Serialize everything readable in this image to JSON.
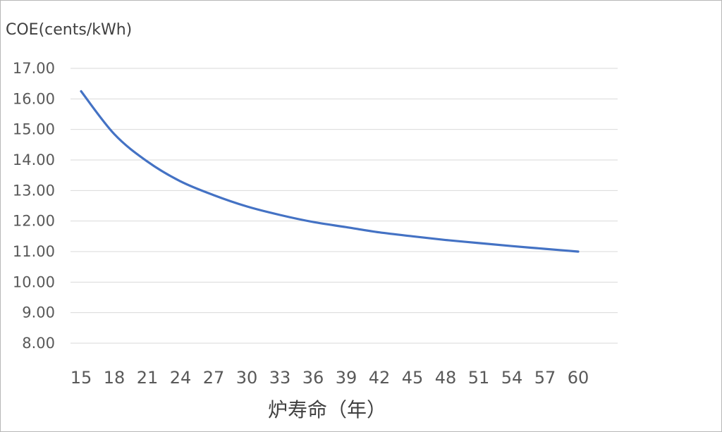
{
  "chart_data": {
    "type": "line",
    "title": "",
    "ylabel": "COE(cents/kWh)",
    "xlabel": "炉寿命（年）",
    "ylim": [
      8.0,
      17.0
    ],
    "y_ticks": [
      "8.00",
      "9.00",
      "10.00",
      "11.00",
      "12.00",
      "13.00",
      "14.00",
      "15.00",
      "16.00",
      "17.00"
    ],
    "x_ticks": [
      "15",
      "18",
      "21",
      "24",
      "27",
      "30",
      "33",
      "36",
      "39",
      "42",
      "45",
      "48",
      "51",
      "54",
      "57",
      "60"
    ],
    "grid": true,
    "legend": "none",
    "line_color": "#4472c4",
    "x": [
      15,
      18,
      21,
      24,
      27,
      30,
      33,
      36,
      39,
      42,
      45,
      48,
      51,
      54,
      57,
      60
    ],
    "series": [
      {
        "values": [
          16.25,
          14.85,
          13.95,
          13.3,
          12.85,
          12.48,
          12.2,
          11.97,
          11.8,
          11.63,
          11.5,
          11.38,
          11.28,
          11.18,
          11.09,
          11.0
        ]
      }
    ]
  }
}
